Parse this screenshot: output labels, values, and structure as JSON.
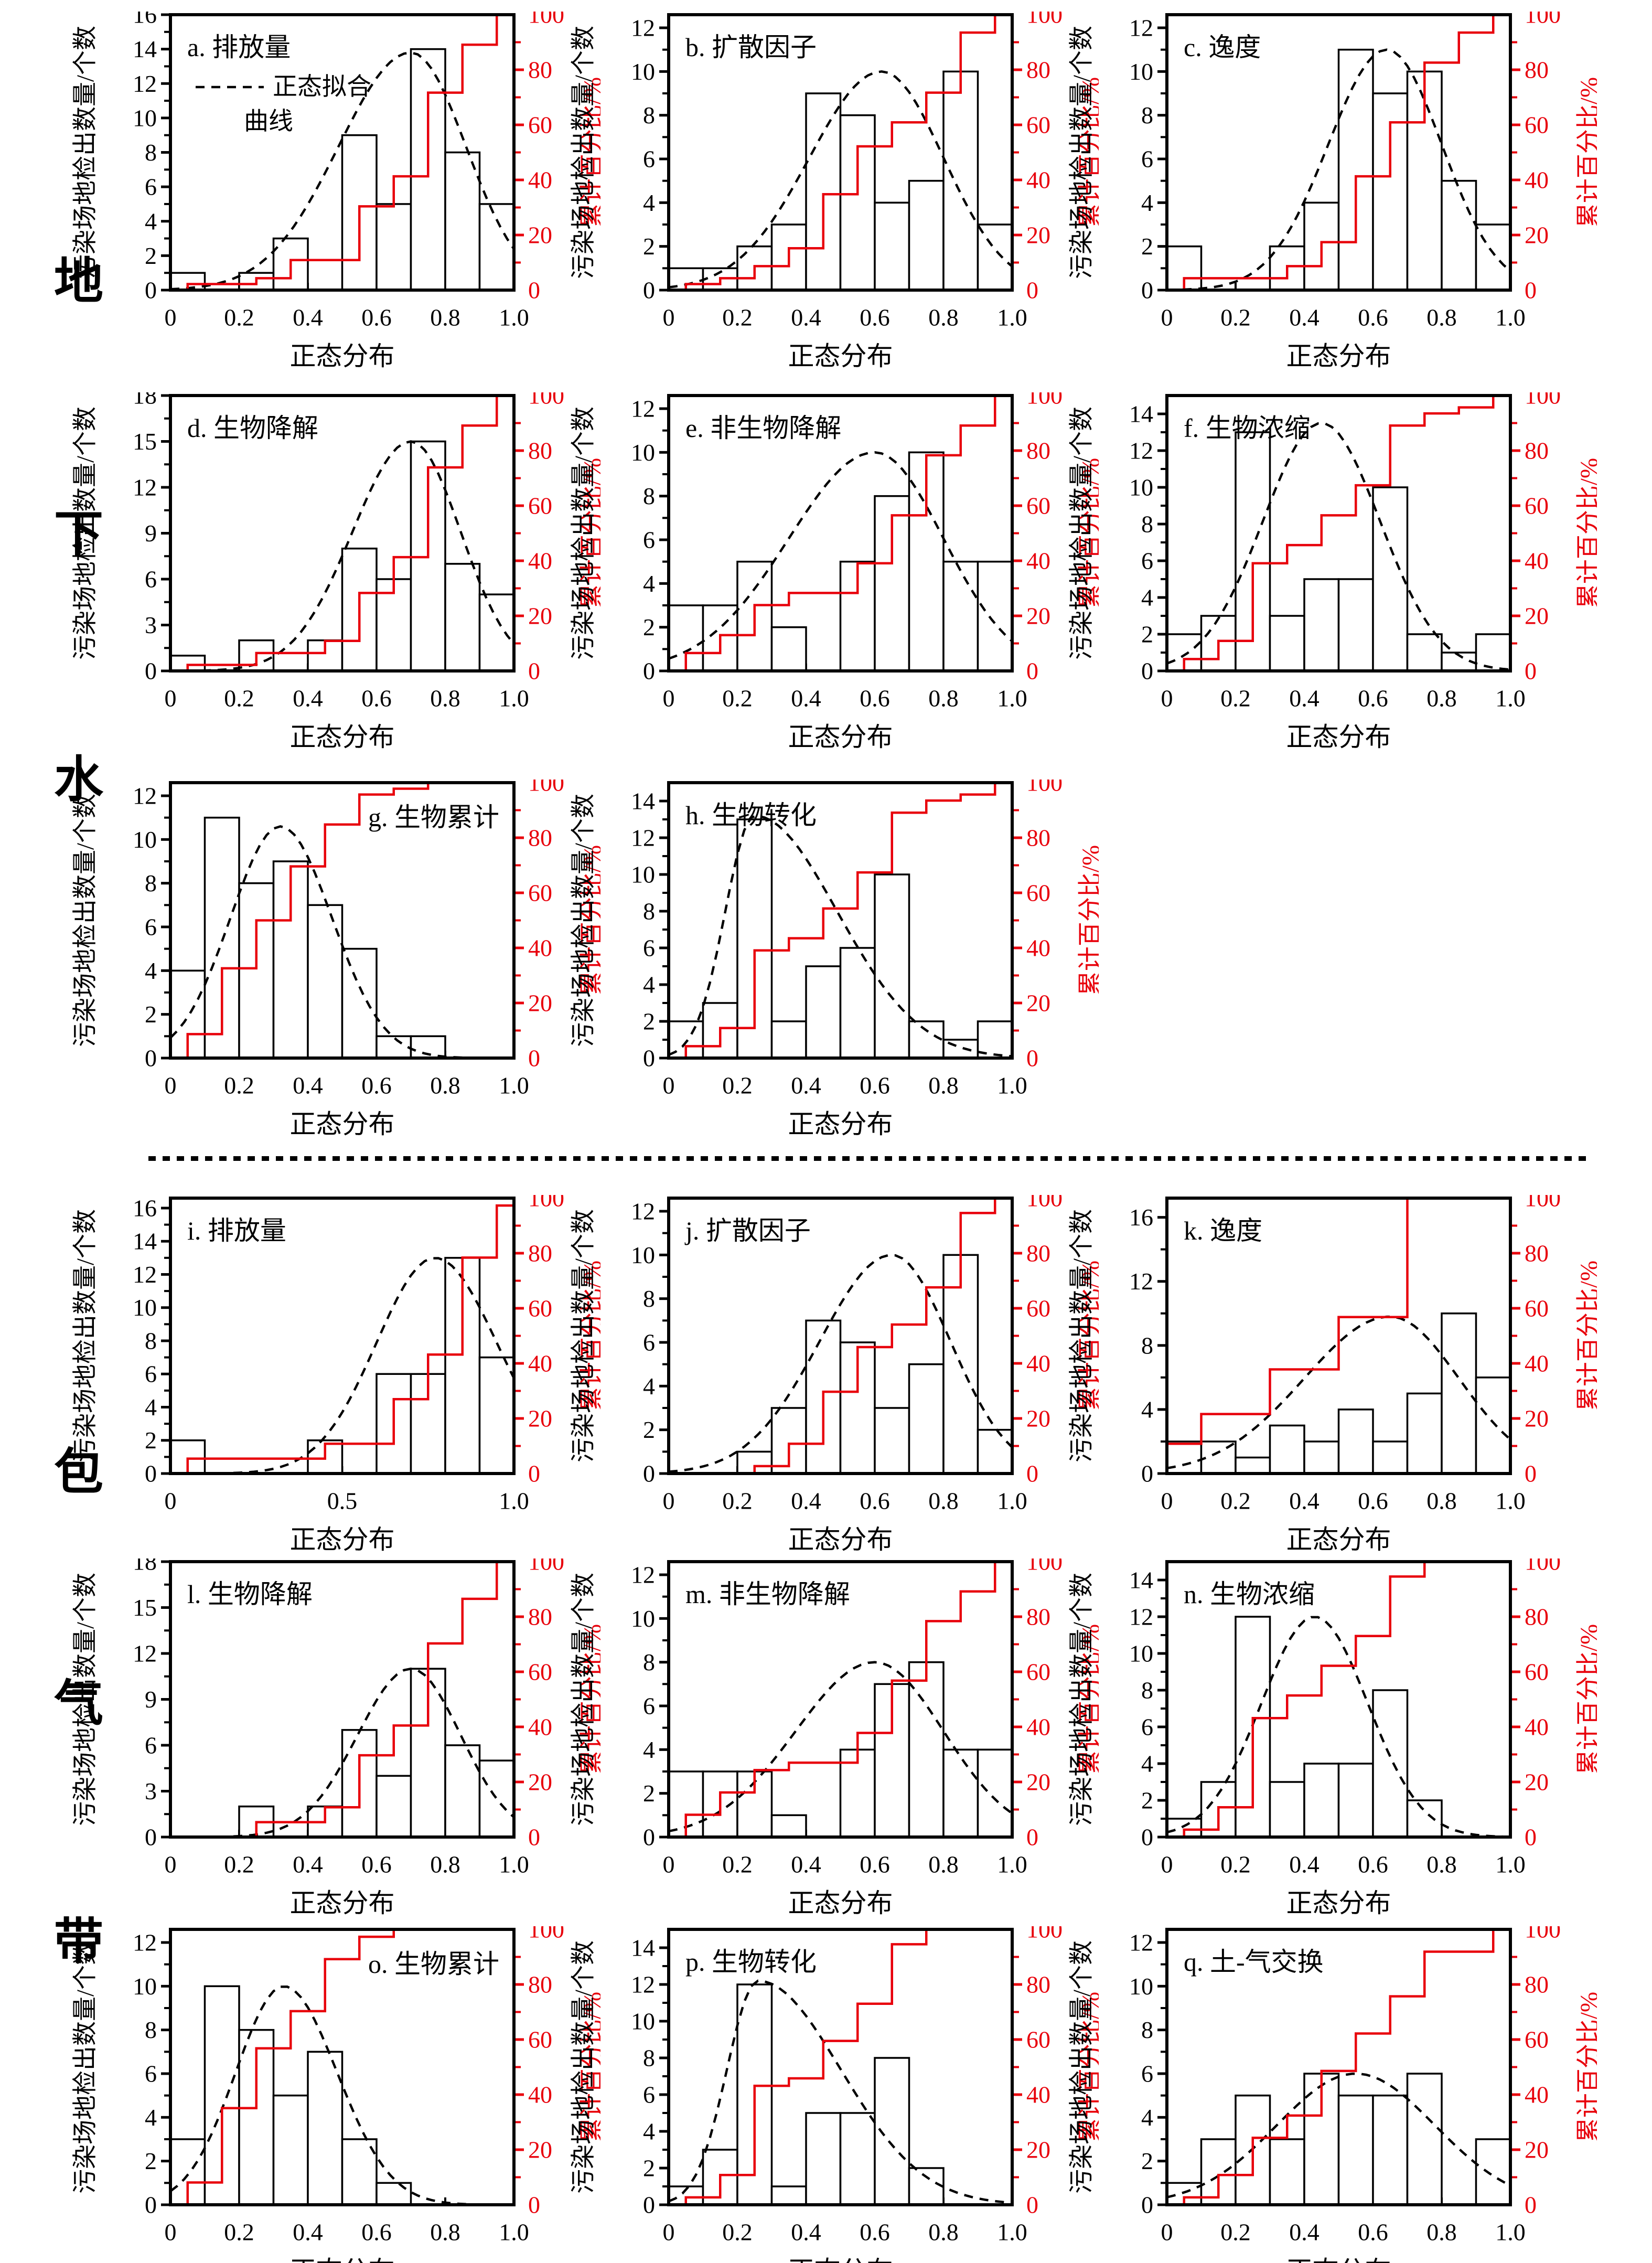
{
  "figure": {
    "ylabel_left": "污染场地检出数量/个数",
    "ylabel_right": "累计百分比/%",
    "xlabel": "正态分布",
    "legend_line1": "正态拟合",
    "legend_line2": "曲线",
    "row_labels": [
      "地",
      "下",
      "水",
      "包",
      "气",
      "带"
    ],
    "colors": {
      "bar_fill": "#ffffff",
      "line_black": "#000000",
      "cumulative_red": "#e8000b"
    },
    "right_axis_tick_labels": [
      "0",
      "20",
      "40",
      "60",
      "80",
      "100"
    ]
  },
  "chart_data": [
    {
      "id": "a",
      "type": "bar",
      "title": "a. 排放量",
      "corner": "tl",
      "row": 0,
      "col": 0,
      "n_total": 46,
      "bin_width": 0.1,
      "heights": [
        1,
        0,
        1,
        3,
        0,
        9,
        5,
        14,
        8,
        5
      ],
      "cumulative_pct": [
        2.2,
        2.2,
        4.3,
        10.9,
        10.9,
        30.4,
        41.3,
        71.7,
        89.1,
        100
      ],
      "ymax_label": 16,
      "ytick": 2,
      "plot_max": 16,
      "has_legend": true,
      "xtick_vals": [
        0,
        0.2,
        0.4,
        0.6,
        0.8,
        1.0
      ],
      "xtick_labels": [
        "0",
        "0.2",
        "0.4",
        "0.6",
        "0.8",
        "1.0"
      ],
      "fit": {
        "mu": 0.7,
        "peak": 13.8,
        "sl": 0.21,
        "sr": 0.16
      }
    },
    {
      "id": "b",
      "type": "bar",
      "title": "b. 扩散因子",
      "corner": "tl",
      "row": 0,
      "col": 1,
      "n_total": 46,
      "bin_width": 0.1,
      "heights": [
        1,
        1,
        2,
        3,
        9,
        8,
        4,
        5,
        10,
        3
      ],
      "cumulative_pct": [
        2.2,
        4.3,
        8.7,
        15.2,
        34.8,
        52.2,
        60.9,
        71.7,
        93.5,
        100
      ],
      "ymax_label": 12,
      "ytick": 2,
      "plot_max": 12.6,
      "has_legend": false,
      "xtick_vals": [
        0,
        0.2,
        0.4,
        0.6,
        0.8,
        1.0
      ],
      "xtick_labels": [
        "0",
        "0.2",
        "0.4",
        "0.6",
        "0.8",
        "1.0"
      ],
      "fit": {
        "mu": 0.62,
        "peak": 10.0,
        "sl": 0.21,
        "sr": 0.18
      }
    },
    {
      "id": "c",
      "type": "bar",
      "title": "c. 逸度",
      "corner": "tl",
      "row": 0,
      "col": 2,
      "n_total": 46,
      "bin_width": 0.1,
      "heights": [
        2,
        0,
        0,
        2,
        4,
        11,
        9,
        10,
        5,
        3
      ],
      "cumulative_pct": [
        4.3,
        4.3,
        4.3,
        8.7,
        17.4,
        41.3,
        60.9,
        82.6,
        93.5,
        100
      ],
      "ymax_label": 12,
      "ytick": 2,
      "plot_max": 12.6,
      "has_legend": false,
      "xtick_vals": [
        0,
        0.2,
        0.4,
        0.6,
        0.8,
        1.0
      ],
      "xtick_labels": [
        "0",
        "0.2",
        "0.4",
        "0.6",
        "0.8",
        "1.0"
      ],
      "fit": {
        "mu": 0.64,
        "peak": 11.0,
        "sl": 0.17,
        "sr": 0.16
      }
    },
    {
      "id": "d",
      "type": "bar",
      "title": "d. 生物降解",
      "corner": "tl",
      "row": 1,
      "col": 0,
      "n_total": 46,
      "bin_width": 0.1,
      "heights": [
        1,
        0,
        2,
        0,
        2,
        8,
        6,
        15,
        7,
        5
      ],
      "cumulative_pct": [
        2.2,
        2.2,
        6.5,
        6.5,
        10.9,
        28.3,
        41.3,
        73.9,
        89.1,
        100
      ],
      "ymax_label": 18,
      "ytick": 3,
      "plot_max": 18,
      "has_legend": false,
      "xtick_vals": [
        0,
        0.2,
        0.4,
        0.6,
        0.8,
        1.0
      ],
      "xtick_labels": [
        "0",
        "0.2",
        "0.4",
        "0.6",
        "0.8",
        "1.0"
      ],
      "fit": {
        "mu": 0.7,
        "peak": 15.0,
        "sl": 0.17,
        "sr": 0.145
      }
    },
    {
      "id": "e",
      "type": "bar",
      "title": "e. 非生物降解",
      "corner": "tl",
      "row": 1,
      "col": 1,
      "n_total": 46,
      "bin_width": 0.1,
      "heights": [
        3,
        3,
        5,
        2,
        0,
        5,
        8,
        10,
        5,
        5
      ],
      "cumulative_pct": [
        6.5,
        13.0,
        23.9,
        28.3,
        28.3,
        39.1,
        56.5,
        78.3,
        89.1,
        100
      ],
      "ymax_label": 12,
      "ytick": 2,
      "plot_max": 12.6,
      "has_legend": false,
      "xtick_vals": [
        0,
        0.2,
        0.4,
        0.6,
        0.8,
        1.0
      ],
      "xtick_labels": [
        "0",
        "0.2",
        "0.4",
        "0.6",
        "0.8",
        "1.0"
      ],
      "fit": {
        "mu": 0.6,
        "peak": 10.0,
        "sl": 0.25,
        "sr": 0.2
      }
    },
    {
      "id": "f",
      "type": "bar",
      "title": "f. 生物浓缩",
      "corner": "tl",
      "row": 1,
      "col": 2,
      "n_total": 46,
      "bin_width": 0.1,
      "heights": [
        2,
        3,
        13,
        3,
        5,
        5,
        10,
        2,
        1,
        2
      ],
      "cumulative_pct": [
        4.3,
        10.9,
        39.1,
        45.7,
        56.5,
        67.4,
        89.1,
        93.5,
        95.7,
        100
      ],
      "ymax_label": 14,
      "ytick": 2,
      "plot_max": 15,
      "has_legend": false,
      "xtick_vals": [
        0,
        0.2,
        0.4,
        0.6,
        0.8,
        1.0
      ],
      "xtick_labels": [
        "0",
        "0.2",
        "0.4",
        "0.6",
        "0.8",
        "1.0"
      ],
      "fit": {
        "mu": 0.45,
        "peak": 13.5,
        "sl": 0.17,
        "sr": 0.17
      }
    },
    {
      "id": "g",
      "type": "bar",
      "title": "g. 生物累计",
      "corner": "tr",
      "row": 2,
      "col": 0,
      "n_total": 46,
      "bin_width": 0.1,
      "heights": [
        4,
        11,
        8,
        9,
        7,
        5,
        1,
        1,
        0,
        0
      ],
      "cumulative_pct": [
        8.7,
        32.6,
        50.0,
        69.6,
        84.8,
        95.7,
        97.8,
        100,
        100,
        100
      ],
      "ymax_label": 12,
      "ytick": 2,
      "plot_max": 12.6,
      "has_legend": false,
      "xtick_vals": [
        0,
        0.2,
        0.4,
        0.6,
        0.8,
        1.0
      ],
      "xtick_labels": [
        "0",
        "0.2",
        "0.4",
        "0.6",
        "0.8",
        "1.0"
      ],
      "fit": {
        "mu": 0.32,
        "peak": 10.6,
        "sl": 0.145,
        "sr": 0.15
      }
    },
    {
      "id": "h",
      "type": "bar",
      "title": "h. 生物转化",
      "corner": "tl",
      "row": 2,
      "col": 1,
      "n_total": 46,
      "bin_width": 0.1,
      "heights": [
        2,
        3,
        13,
        2,
        5,
        6,
        10,
        2,
        1,
        2
      ],
      "cumulative_pct": [
        4.3,
        10.9,
        39.1,
        43.5,
        54.3,
        67.4,
        89.1,
        93.5,
        95.7,
        100
      ],
      "ymax_label": 14,
      "ytick": 2,
      "plot_max": 15,
      "has_legend": false,
      "xtick_vals": [
        0,
        0.2,
        0.4,
        0.6,
        0.8,
        1.0
      ],
      "xtick_labels": [
        "0",
        "0.2",
        "0.4",
        "0.6",
        "0.8",
        "1.0"
      ],
      "fit": {
        "mu": 0.25,
        "peak": 13.2,
        "sl": 0.085,
        "sr": 0.24
      }
    },
    {
      "id": "i",
      "type": "bar",
      "title": "i. 排放量",
      "corner": "tl",
      "row": 3,
      "col": 0,
      "n_total": 37,
      "bin_width": 0.1,
      "heights": [
        2,
        0,
        0,
        0,
        2,
        0,
        6,
        6,
        13,
        7,
        1
      ],
      "cumulative_pct": [
        5.4,
        5.4,
        5.4,
        5.4,
        10.8,
        10.8,
        27.0,
        43.2,
        78.4,
        97.3,
        100
      ],
      "ymax_label": 16,
      "ytick": 2,
      "plot_max": 16.6,
      "has_legend": false,
      "xtick_vals": [
        0,
        0.5,
        1.0
      ],
      "xtick_labels": [
        "0",
        "0.5",
        "1.0"
      ],
      "fit": {
        "mu": 0.77,
        "peak": 13.0,
        "sl": 0.17,
        "sr": 0.18
      }
    },
    {
      "id": "j",
      "type": "bar",
      "title": "j. 扩散因子",
      "corner": "tl",
      "row": 3,
      "col": 1,
      "n_total": 37,
      "bin_width": 0.1,
      "heights": [
        0,
        0,
        1,
        3,
        7,
        6,
        3,
        5,
        10,
        2
      ],
      "cumulative_pct": [
        0,
        0,
        2.7,
        10.8,
        29.7,
        45.9,
        54.1,
        67.6,
        94.6,
        100
      ],
      "ymax_label": 12,
      "ytick": 2,
      "plot_max": 12.6,
      "has_legend": false,
      "xtick_vals": [
        0,
        0.2,
        0.4,
        0.6,
        0.8,
        1.0
      ],
      "xtick_labels": [
        "0",
        "0.2",
        "0.4",
        "0.6",
        "0.8",
        "1.0"
      ],
      "fit": {
        "mu": 0.65,
        "peak": 10.0,
        "sl": 0.21,
        "sr": 0.17
      }
    },
    {
      "id": "k",
      "type": "bar",
      "title": "k. 逸度",
      "corner": "tl",
      "row": 3,
      "col": 2,
      "n_total": 37,
      "bin_width": 0.1,
      "heights": [
        2,
        2,
        1,
        3,
        2,
        4,
        2,
        5,
        10,
        6
      ],
      "cumulative_pct": [
        5.4,
        10.8,
        13.5,
        21.6,
        27.0,
        37.8,
        43.2,
        56.8,
        83.8,
        100
      ],
      "cum_steps": [
        {
          "x": 0.0,
          "v": 10.8
        },
        {
          "x": 0.1,
          "v": 21.6
        },
        {
          "x": 0.3,
          "v": 37.8
        },
        {
          "x": 0.5,
          "v": 56.8
        },
        {
          "x": 0.7,
          "v": 100
        }
      ],
      "ymax_label": 16,
      "ytick": 4,
      "plot_max": 17.2,
      "has_legend": false,
      "xtick_vals": [
        0,
        0.2,
        0.4,
        0.6,
        0.8,
        1.0
      ],
      "xtick_labels": [
        "0",
        "0.2",
        "0.4",
        "0.6",
        "0.8",
        "1.0"
      ],
      "fit": {
        "mu": 0.65,
        "peak": 9.8,
        "sl": 0.25,
        "sr": 0.2
      }
    },
    {
      "id": "l",
      "type": "bar",
      "title": "l. 生物降解",
      "corner": "tl",
      "row": 4,
      "col": 0,
      "n_total": 37,
      "bin_width": 0.1,
      "heights": [
        0,
        0,
        2,
        0,
        2,
        7,
        4,
        11,
        6,
        5
      ],
      "cumulative_pct": [
        0,
        0,
        5.4,
        5.4,
        10.8,
        29.7,
        40.5,
        70.3,
        86.5,
        100
      ],
      "ymax_label": 18,
      "ytick": 3,
      "plot_max": 18,
      "has_legend": false,
      "xtick_vals": [
        0,
        0.2,
        0.4,
        0.6,
        0.8,
        1.0
      ],
      "xtick_labels": [
        "0",
        "0.2",
        "0.4",
        "0.6",
        "0.8",
        "1.0"
      ],
      "fit": {
        "mu": 0.7,
        "peak": 11.0,
        "sl": 0.155,
        "sr": 0.145
      }
    },
    {
      "id": "m",
      "type": "bar",
      "title": "m. 非生物降解",
      "corner": "tl",
      "row": 4,
      "col": 1,
      "n_total": 37,
      "bin_width": 0.1,
      "heights": [
        3,
        3,
        3,
        1,
        0,
        4,
        7,
        8,
        4,
        4
      ],
      "cumulative_pct": [
        8.1,
        16.2,
        24.3,
        27.0,
        27.0,
        37.8,
        56.8,
        78.4,
        89.2,
        100
      ],
      "ymax_label": 12,
      "ytick": 2,
      "plot_max": 12.6,
      "has_legend": false,
      "xtick_vals": [
        0,
        0.2,
        0.4,
        0.6,
        0.8,
        1.0
      ],
      "xtick_labels": [
        "0",
        "0.2",
        "0.4",
        "0.6",
        "0.8",
        "1.0"
      ],
      "fit": {
        "mu": 0.6,
        "peak": 8.0,
        "sl": 0.23,
        "sr": 0.2
      }
    },
    {
      "id": "n",
      "type": "bar",
      "title": "n. 生物浓缩",
      "corner": "tl",
      "row": 4,
      "col": 2,
      "n_total": 37,
      "bin_width": 0.1,
      "heights": [
        1,
        3,
        12,
        3,
        4,
        4,
        8,
        2,
        0,
        0
      ],
      "cumulative_pct": [
        2.7,
        10.8,
        43.2,
        51.4,
        62.2,
        73.0,
        94.6,
        100,
        100,
        100
      ],
      "ymax_label": 14,
      "ytick": 2,
      "plot_max": 15,
      "has_legend": false,
      "xtick_vals": [
        0,
        0.2,
        0.4,
        0.6,
        0.8,
        1.0
      ],
      "xtick_labels": [
        "0",
        "0.2",
        "0.4",
        "0.6",
        "0.8",
        "1.0"
      ],
      "fit": {
        "mu": 0.43,
        "peak": 12.0,
        "sl": 0.155,
        "sr": 0.155
      }
    },
    {
      "id": "o",
      "type": "bar",
      "title": "o. 生物累计",
      "corner": "tr",
      "row": 5,
      "col": 0,
      "n_total": 37,
      "bin_width": 0.1,
      "heights": [
        3,
        10,
        8,
        5,
        7,
        3,
        1,
        0,
        0,
        0
      ],
      "cumulative_pct": [
        8.1,
        35.1,
        56.8,
        70.3,
        89.2,
        97.3,
        100,
        100,
        100,
        100
      ],
      "ymax_label": 12,
      "ytick": 2,
      "plot_max": 12.6,
      "has_legend": false,
      "xtick_vals": [
        0,
        0.2,
        0.4,
        0.6,
        0.8,
        1.0
      ],
      "xtick_labels": [
        "0",
        "0.2",
        "0.4",
        "0.6",
        "0.8",
        "1.0"
      ],
      "fit": {
        "mu": 0.33,
        "peak": 10.0,
        "sl": 0.14,
        "sr": 0.155
      }
    },
    {
      "id": "p",
      "type": "bar",
      "title": "p. 生物转化",
      "corner": "tl",
      "row": 5,
      "col": 1,
      "n_total": 37,
      "bin_width": 0.1,
      "heights": [
        1,
        3,
        12,
        1,
        5,
        5,
        8,
        2,
        0,
        0
      ],
      "cumulative_pct": [
        2.7,
        10.8,
        43.2,
        45.9,
        59.5,
        73.0,
        94.6,
        100,
        100,
        100
      ],
      "ymax_label": 14,
      "ytick": 2,
      "plot_max": 15,
      "has_legend": false,
      "xtick_vals": [
        0,
        0.2,
        0.4,
        0.6,
        0.8,
        1.0
      ],
      "xtick_labels": [
        "0",
        "0.2",
        "0.4",
        "0.6",
        "0.8",
        "1.0"
      ],
      "fit": {
        "mu": 0.26,
        "peak": 12.2,
        "sl": 0.09,
        "sr": 0.24
      }
    },
    {
      "id": "q",
      "type": "bar",
      "title": "q. 土-气交换",
      "corner": "tl",
      "row": 5,
      "col": 2,
      "n_total": 37,
      "bin_width": 0.1,
      "heights": [
        1,
        3,
        5,
        3,
        6,
        5,
        5,
        6,
        0,
        3
      ],
      "cumulative_pct": [
        2.7,
        10.8,
        24.3,
        32.4,
        48.6,
        62.2,
        75.7,
        91.9,
        91.9,
        100
      ],
      "ymax_label": 12,
      "ytick": 2,
      "plot_max": 12.6,
      "has_legend": false,
      "xtick_vals": [
        0,
        0.2,
        0.4,
        0.6,
        0.8,
        1.0
      ],
      "xtick_labels": [
        "0",
        "0.2",
        "0.4",
        "0.6",
        "0.8",
        "1.0"
      ],
      "fit": {
        "mu": 0.55,
        "peak": 6.0,
        "sl": 0.23,
        "sr": 0.23
      }
    }
  ]
}
